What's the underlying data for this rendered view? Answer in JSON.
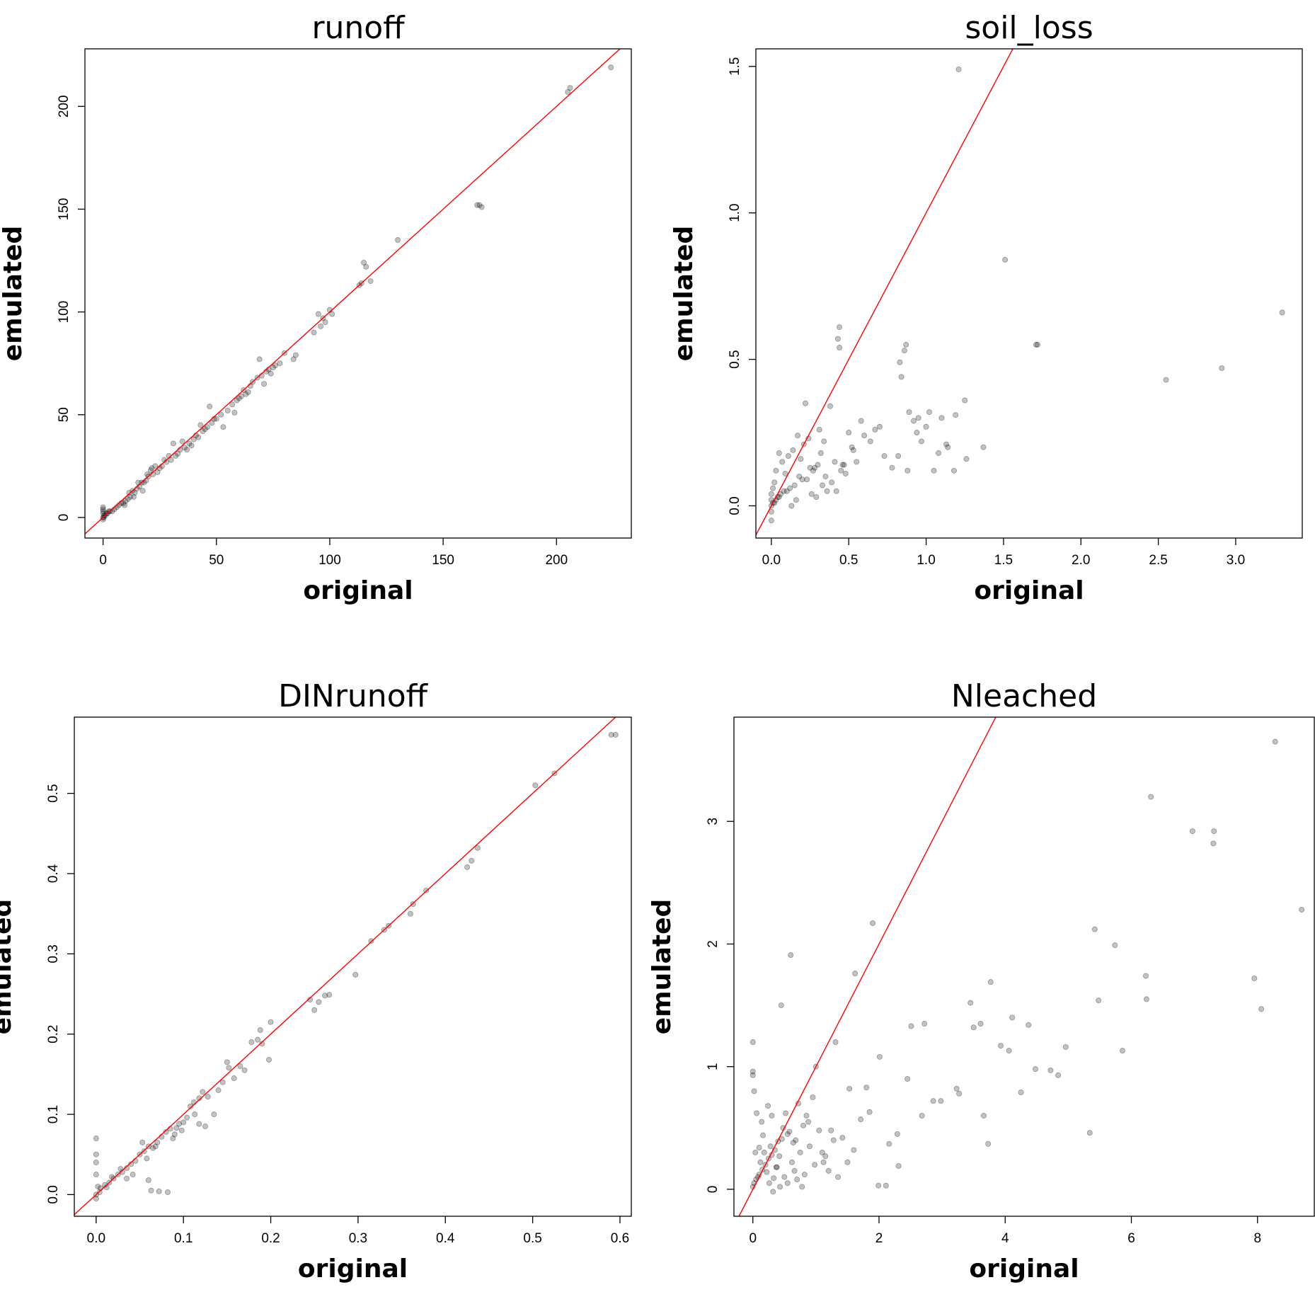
{
  "chart_data": [
    {
      "type": "scatter",
      "id": "runoff",
      "title": "runoff",
      "xlabel": "original",
      "ylabel": "emulated",
      "xlim": [
        -8,
        233
      ],
      "ylim": [
        -10,
        228
      ],
      "xticks": [
        0,
        50,
        100,
        150,
        200
      ],
      "yticks": [
        0,
        50,
        100,
        150,
        200
      ],
      "xtick_labels": [
        "0",
        "50",
        "100",
        "150",
        "200"
      ],
      "ytick_labels": [
        "0",
        "50",
        "100",
        "150",
        "200"
      ],
      "reference_line": {
        "slope": 1,
        "intercept": 0,
        "color": "#ff0000"
      },
      "series": [
        {
          "name": "runoff",
          "x": [
            224,
            206,
            205,
            166,
            167,
            165,
            130,
            115,
            116,
            114,
            118,
            113,
            100,
            101,
            97,
            95,
            93,
            96,
            98,
            84,
            85,
            80,
            78,
            75,
            73,
            72,
            70,
            68,
            65,
            63,
            62,
            60,
            57,
            55,
            52,
            50,
            48,
            46,
            44,
            42,
            40,
            38,
            36,
            34,
            32,
            30,
            28,
            26,
            24,
            22,
            20,
            19,
            18,
            17,
            16,
            15,
            14,
            13,
            12,
            11,
            10,
            9,
            8,
            7,
            6,
            5,
            4,
            3,
            2,
            1,
            0.5,
            0.3,
            0,
            0,
            0,
            0,
            0,
            0,
            1.5,
            2.5,
            69,
            66,
            71,
            58,
            53,
            47,
            43,
            39,
            35,
            31,
            27,
            23,
            21,
            25,
            29,
            33,
            37,
            41,
            45,
            49,
            59,
            61,
            64,
            74,
            76,
            9.5,
            11.5,
            13.5,
            15.5,
            17.5,
            19.5,
            21.5
          ],
          "values": [
            219,
            209,
            207,
            152,
            151,
            152,
            135,
            124,
            122,
            114,
            115,
            113,
            101,
            99,
            97,
            99,
            90,
            93,
            95,
            77,
            79,
            80,
            75,
            73,
            72,
            71,
            69,
            68,
            64,
            60,
            62,
            58,
            55,
            52,
            50,
            48,
            46,
            44,
            42,
            39,
            38,
            36,
            34,
            33,
            30,
            28,
            27,
            25,
            22,
            21,
            20,
            18,
            17,
            17,
            15,
            14,
            12,
            13,
            10,
            9,
            8,
            7,
            7,
            6,
            5,
            4,
            3,
            3,
            2,
            1,
            1,
            0,
            0,
            2,
            3,
            4,
            5,
            -1,
            2,
            3,
            77,
            66,
            65,
            51,
            44,
            54,
            45,
            35,
            37,
            36,
            28,
            25,
            23,
            24,
            30,
            31,
            33,
            40,
            43,
            48,
            57,
            59,
            61,
            70,
            74,
            6,
            12,
            10,
            17,
            13,
            21,
            24
          ]
        }
      ]
    },
    {
      "type": "scatter",
      "id": "soil_loss",
      "title": "soil_loss",
      "xlabel": "original",
      "ylabel": "emulated",
      "xlim": [
        -0.1,
        3.43
      ],
      "ylim": [
        -0.11,
        1.56
      ],
      "xticks": [
        0.0,
        0.5,
        1.0,
        1.5,
        2.0,
        2.5,
        3.0
      ],
      "yticks": [
        0.0,
        0.5,
        1.0,
        1.5
      ],
      "xtick_labels": [
        "0.0",
        "0.5",
        "1.0",
        "1.5",
        "2.0",
        "2.5",
        "3.0"
      ],
      "ytick_labels": [
        "0.0",
        "0.5",
        "1.0",
        "1.5"
      ],
      "reference_line": {
        "slope": 1,
        "intercept": 0,
        "color": "#ff0000"
      },
      "series": [
        {
          "name": "soil_loss",
          "x": [
            1.21,
            1.51,
            3.3,
            2.91,
            2.55,
            1.72,
            1.71,
            0.44,
            0.43,
            0.44,
            0.86,
            0.87,
            0.83,
            0.84,
            0.22,
            0.38,
            1.25,
            1.19,
            1.37,
            1.1,
            1.02,
            0.92,
            0.89,
            0.95,
            1.0,
            0.97,
            0.82,
            1.18,
            1.14,
            1.26,
            0.58,
            0.67,
            0.73,
            0.5,
            0.53,
            0.46,
            0.41,
            0.34,
            0.3,
            0.28,
            0.25,
            0.2,
            0.18,
            0.15,
            0.12,
            0.1,
            0.08,
            0.06,
            0.05,
            0.04,
            0.03,
            0.02,
            0.01,
            0.0,
            0.0,
            0.0,
            0.0,
            0.0,
            0.01,
            0.02,
            0.03,
            0.05,
            0.07,
            0.09,
            0.11,
            0.14,
            0.17,
            0.21,
            0.24,
            0.27,
            0.31,
            0.35,
            0.39,
            0.45,
            0.48,
            0.52,
            0.55,
            0.6,
            0.64,
            0.7,
            0.78,
            0.88,
            0.94,
            1.05,
            1.08,
            1.13,
            0.33,
            0.36,
            0.26,
            0.29,
            0.16,
            0.13,
            0.19,
            0.23,
            0.42,
            0.47,
            0.32
          ],
          "values": [
            1.49,
            0.84,
            0.66,
            0.47,
            0.43,
            0.55,
            0.55,
            0.61,
            0.57,
            0.54,
            0.53,
            0.55,
            0.49,
            0.44,
            0.35,
            0.34,
            0.36,
            0.31,
            0.2,
            0.3,
            0.32,
            0.29,
            0.32,
            0.3,
            0.27,
            0.22,
            0.17,
            0.12,
            0.2,
            0.16,
            0.29,
            0.26,
            0.17,
            0.25,
            0.19,
            0.14,
            0.15,
            0.22,
            0.14,
            0.13,
            0.13,
            0.09,
            0.1,
            0.07,
            0.06,
            0.05,
            0.05,
            0.04,
            0.03,
            0.03,
            0.02,
            0.01,
            0.01,
            0.0,
            0.02,
            0.04,
            -0.02,
            -0.05,
            0.06,
            0.08,
            0.12,
            0.18,
            0.15,
            0.11,
            0.17,
            0.19,
            0.24,
            0.21,
            0.23,
            0.12,
            0.26,
            0.1,
            0.08,
            0.12,
            0.11,
            0.2,
            0.15,
            0.24,
            0.22,
            0.27,
            0.13,
            0.12,
            0.25,
            0.12,
            0.18,
            0.21,
            0.07,
            0.05,
            0.04,
            0.03,
            0.02,
            0.0,
            0.16,
            0.09,
            0.05,
            0.14,
            0.18
          ]
        }
      ]
    },
    {
      "type": "scatter",
      "id": "DINrunoff",
      "title": "DINrunoff",
      "xlabel": "original",
      "ylabel": "emulated",
      "xlim": [
        -0.025,
        0.613
      ],
      "ylim": [
        -0.027,
        0.595
      ],
      "xticks": [
        0.0,
        0.1,
        0.2,
        0.3,
        0.4,
        0.5,
        0.6
      ],
      "yticks": [
        0.0,
        0.1,
        0.2,
        0.3,
        0.4,
        0.5
      ],
      "xtick_labels": [
        "0.0",
        "0.1",
        "0.2",
        "0.3",
        "0.4",
        "0.5",
        "0.6"
      ],
      "ytick_labels": [
        "0.0",
        "0.1",
        "0.2",
        "0.3",
        "0.4",
        "0.5"
      ],
      "reference_line": {
        "slope": 1,
        "intercept": 0,
        "color": "#ff0000"
      },
      "series": [
        {
          "name": "DINrunoff",
          "x": [
            0.59,
            0.595,
            0.525,
            0.503,
            0.437,
            0.43,
            0.425,
            0.378,
            0.363,
            0.36,
            0.335,
            0.33,
            0.315,
            0.297,
            0.267,
            0.262,
            0.255,
            0.25,
            0.245,
            0.2,
            0.188,
            0.185,
            0.19,
            0.198,
            0.165,
            0.152,
            0.15,
            0.14,
            0.128,
            0.122,
            0.118,
            0.112,
            0.108,
            0.104,
            0.1,
            0.095,
            0.09,
            0.085,
            0.08,
            0.075,
            0.07,
            0.065,
            0.06,
            0.055,
            0.05,
            0.045,
            0.04,
            0.035,
            0.03,
            0.025,
            0.02,
            0.015,
            0.01,
            0.005,
            0.0,
            0.0,
            0.0,
            0.0,
            0.0,
            0.0,
            0.002,
            0.004,
            0.06,
            0.063,
            0.072,
            0.082,
            0.053,
            0.092,
            0.113,
            0.118,
            0.135,
            0.158,
            0.178,
            0.125,
            0.145,
            0.17,
            0.058,
            0.068,
            0.088,
            0.098,
            0.035,
            0.042,
            0.028,
            0.012,
            0.018
          ],
          "values": [
            0.573,
            0.573,
            0.525,
            0.51,
            0.432,
            0.416,
            0.408,
            0.379,
            0.362,
            0.35,
            0.335,
            0.33,
            0.316,
            0.274,
            0.249,
            0.248,
            0.24,
            0.23,
            0.243,
            0.215,
            0.205,
            0.193,
            0.188,
            0.168,
            0.16,
            0.158,
            0.165,
            0.13,
            0.122,
            0.128,
            0.12,
            0.115,
            0.11,
            0.096,
            0.09,
            0.088,
            0.075,
            0.082,
            0.078,
            0.072,
            0.065,
            0.058,
            0.06,
            0.054,
            0.05,
            0.042,
            0.038,
            0.033,
            0.028,
            0.025,
            0.02,
            0.015,
            0.012,
            0.008,
            0.0,
            0.07,
            0.05,
            0.04,
            0.025,
            -0.005,
            0.01,
            0.003,
            0.018,
            0.005,
            0.004,
            0.003,
            0.065,
            0.083,
            0.1,
            0.088,
            0.1,
            0.145,
            0.19,
            0.085,
            0.14,
            0.155,
            0.045,
            0.06,
            0.07,
            0.08,
            0.02,
            0.025,
            0.032,
            0.009,
            0.022
          ]
        }
      ]
    },
    {
      "type": "scatter",
      "id": "Nleached",
      "title": "Nleached",
      "xlabel": "original",
      "ylabel": "emulated",
      "xlim": [
        -0.3,
        8.9
      ],
      "ylim": [
        -0.22,
        3.85
      ],
      "xticks": [
        0,
        2,
        4,
        6,
        8
      ],
      "yticks": [
        0,
        1,
        2,
        3
      ],
      "xtick_labels": [
        "0",
        "2",
        "4",
        "6",
        "8"
      ],
      "ytick_labels": [
        "0",
        "1",
        "2",
        "3"
      ],
      "reference_line": {
        "slope": 1,
        "intercept": 0,
        "color": "#ff0000"
      },
      "series": [
        {
          "name": "Nleached",
          "x": [
            8.28,
            8.7,
            7.95,
            8.06,
            7.31,
            7.3,
            6.97,
            6.31,
            6.24,
            6.23,
            5.86,
            5.74,
            5.48,
            5.42,
            5.34,
            4.96,
            4.84,
            4.72,
            4.48,
            4.37,
            4.25,
            4.11,
            4.06,
            3.93,
            3.77,
            3.73,
            3.66,
            3.61,
            3.5,
            3.45,
            3.27,
            3.23,
            2.98,
            2.86,
            2.72,
            2.68,
            2.51,
            2.45,
            2.29,
            2.16,
            2.01,
            1.9,
            1.85,
            1.8,
            1.71,
            1.62,
            1.53,
            1.31,
            1.0,
            0.6,
            0.45,
            0.0,
            0.0,
            0.0,
            0.02,
            2.11,
            1.99,
            2.31,
            1.42,
            1.24,
            1.12,
            0.95,
            0.88,
            0.8,
            0.72,
            0.64,
            0.58,
            0.52,
            0.46,
            0.4,
            0.35,
            0.3,
            0.25,
            0.2,
            0.15,
            0.1,
            0.05,
            0.02,
            0.0,
            0.08,
            0.12,
            0.18,
            0.22,
            0.28,
            0.33,
            0.38,
            0.42,
            0.48,
            0.55,
            0.62,
            0.68,
            0.75,
            0.82,
            0.9,
            0.98,
            1.05,
            1.15,
            1.2,
            1.35,
            1.5,
            1.6,
            0.55,
            0.7,
            0.85,
            0.32,
            0.26,
            0.14,
            0.06,
            0.04,
            0.37,
            0.43,
            0.5,
            0.3,
            0.24,
            0.16,
            0.1,
            0.66,
            0.78,
            1.1,
            1.28
          ],
          "values": [
            3.65,
            2.28,
            1.72,
            1.47,
            2.92,
            2.82,
            2.92,
            3.2,
            1.55,
            1.74,
            1.13,
            1.99,
            1.54,
            2.12,
            0.46,
            1.16,
            0.93,
            0.97,
            0.98,
            1.34,
            0.79,
            1.4,
            1.13,
            1.17,
            1.69,
            0.37,
            0.6,
            1.35,
            1.32,
            1.52,
            0.78,
            0.82,
            0.72,
            0.72,
            1.35,
            0.6,
            1.33,
            0.9,
            0.45,
            0.37,
            1.08,
            2.17,
            0.63,
            0.83,
            0.57,
            1.76,
            0.82,
            1.2,
            1.0,
            1.91,
            1.5,
            1.2,
            0.96,
            0.93,
            0.8,
            0.03,
            0.03,
            0.19,
            0.42,
            0.48,
            0.22,
            0.75,
            0.55,
            0.52,
            0.7,
            0.38,
            0.47,
            0.62,
            0.41,
            0.39,
            0.32,
            0.28,
            0.25,
            0.2,
            0.16,
            0.12,
            0.08,
            0.05,
            0.02,
            0.1,
            0.22,
            0.3,
            0.14,
            0.35,
            0.09,
            0.18,
            0.27,
            0.5,
            0.45,
            0.22,
            0.4,
            0.3,
            0.12,
            0.35,
            0.2,
            0.48,
            0.27,
            0.15,
            0.1,
            0.22,
            0.32,
            0.05,
            0.08,
            0.6,
            -0.02,
            0.05,
            0.55,
            0.62,
            0.3,
            0.18,
            0.02,
            0.1,
            0.6,
            0.68,
            0.44,
            0.34,
            0.15,
            0.02,
            0.3,
            0.4
          ]
        }
      ]
    }
  ]
}
